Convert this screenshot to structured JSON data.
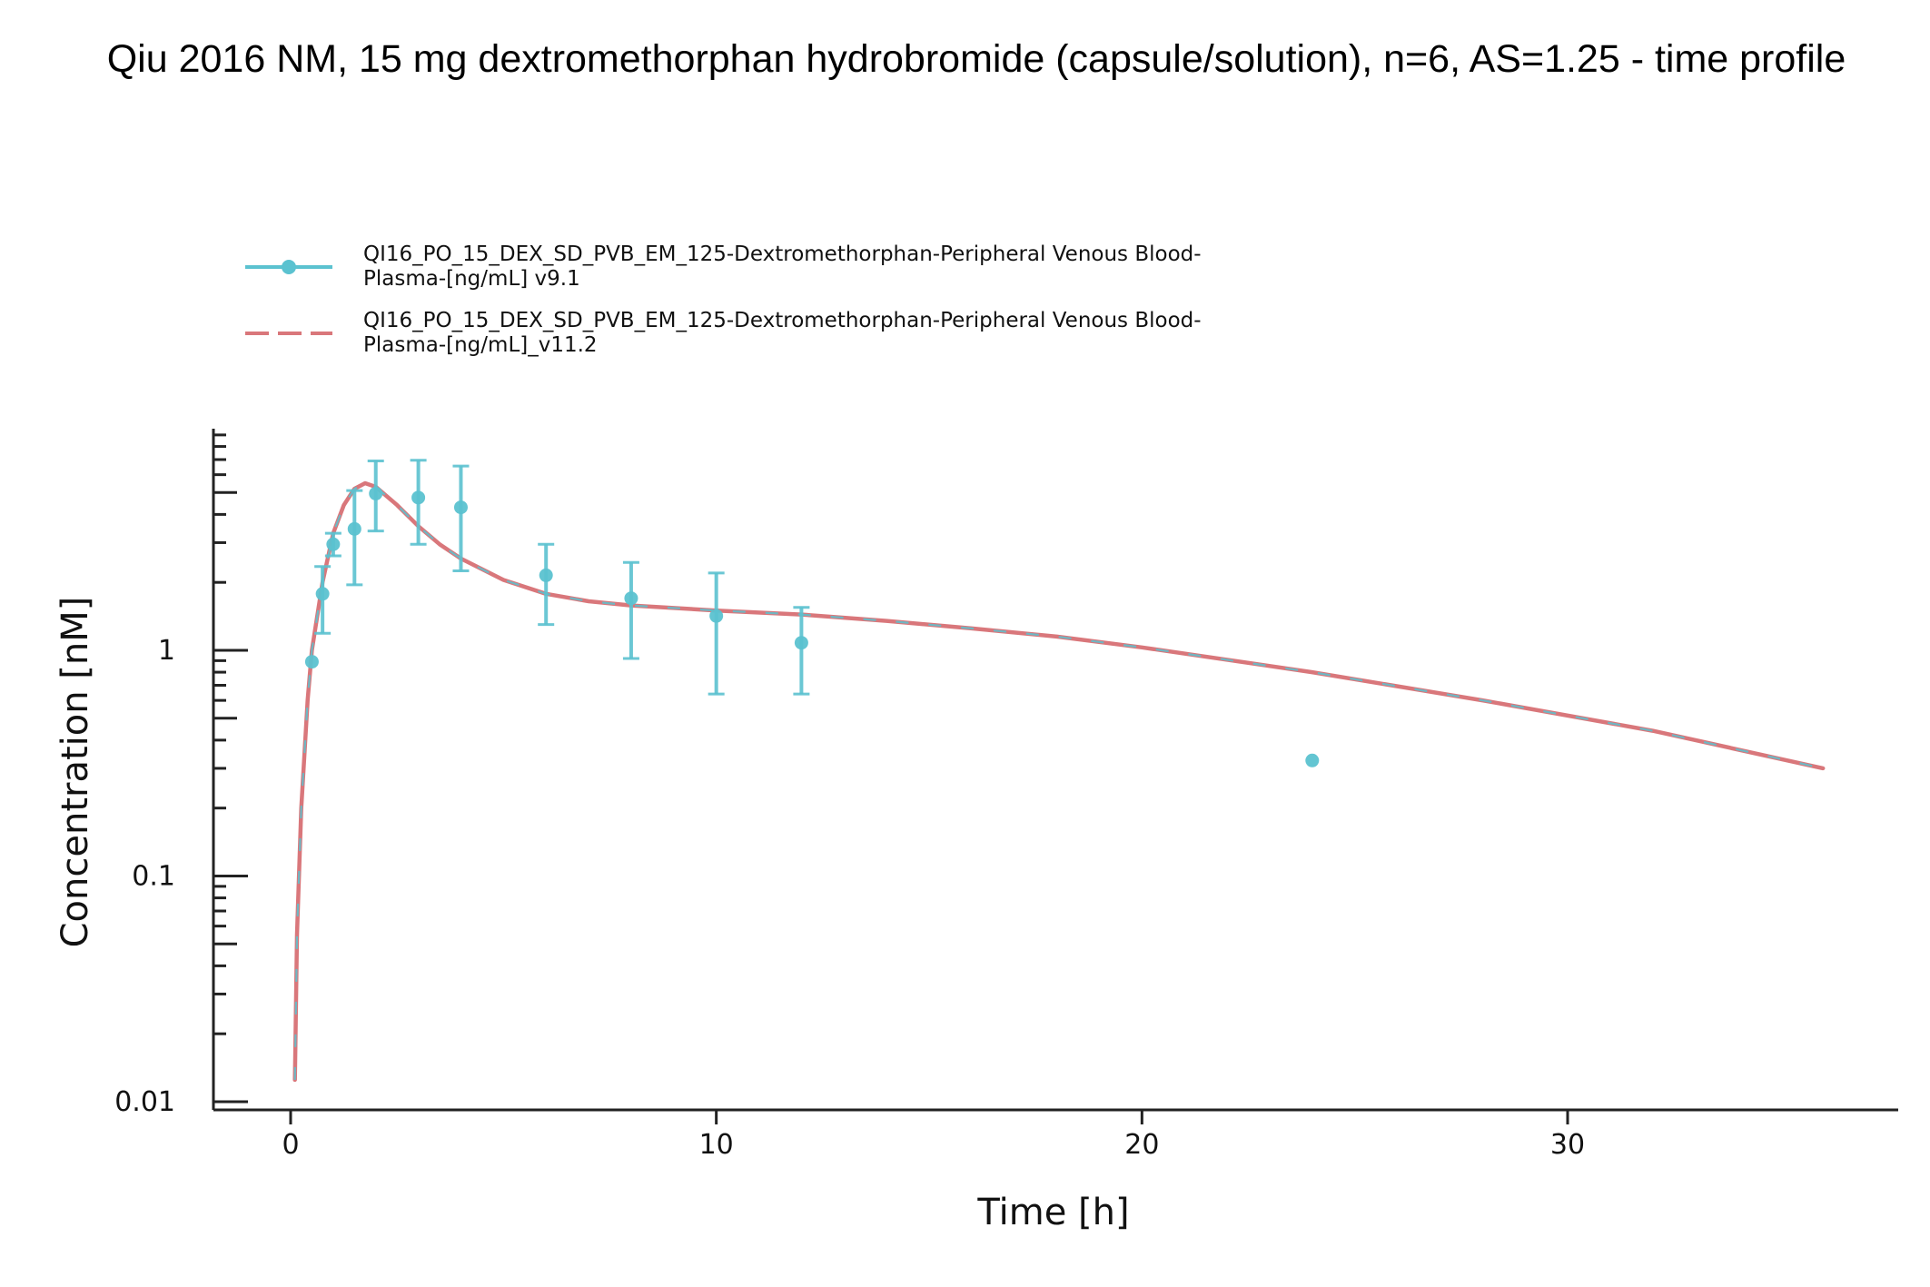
{
  "chart_data": {
    "type": "line",
    "title": "Qiu 2016 NM, 15 mg dextromethorphan hydrobromide (capsule/solution), n=6,  AS=1.25 - time profile",
    "xlabel": "Time [h]",
    "ylabel": "Concentration [nM]",
    "xlim": [
      -1.8,
      37.8
    ],
    "ylim": [
      0.01,
      9
    ],
    "yscale": "log",
    "xticks": [
      0,
      10,
      20,
      30
    ],
    "xtick_labels": [
      "0",
      "10",
      "20",
      "30"
    ],
    "yticks": [
      0.01,
      0.1,
      1
    ],
    "ytick_labels": [
      "0.01",
      "0.1",
      "1"
    ],
    "grid": false,
    "legend_position": "top-left",
    "series": [
      {
        "name": "QI16_PO_15_DEX_SD_PVB_EM_125-Dextromethorphan-Peripheral Venous Blood-Plasma-[ng/mL] v9.1",
        "name_lines": [
          "QI16_PO_15_DEX_SD_PVB_EM_125-Dextromethorphan-Peripheral Venous Blood-",
          "Plasma-[ng/mL] v9.1"
        ],
        "kind": "observed",
        "color": "#5bc2d0",
        "x": [
          0.5,
          0.75,
          1,
          1.5,
          2,
          3,
          4,
          6,
          8,
          10,
          12,
          24
        ],
        "y": [
          0.89,
          1.78,
          2.95,
          3.45,
          4.95,
          4.75,
          4.3,
          2.15,
          1.7,
          1.42,
          1.08,
          0.325
        ],
        "y_lower": [
          null,
          1.19,
          2.62,
          1.95,
          3.38,
          2.95,
          2.25,
          1.3,
          0.92,
          0.64,
          0.64,
          null
        ],
        "y_upper": [
          null,
          2.35,
          3.3,
          5.1,
          6.9,
          6.95,
          6.55,
          2.95,
          2.45,
          2.2,
          1.55,
          null
        ]
      },
      {
        "name": "QI16_PO_15_DEX_SD_PVB_EM_125-Dextromethorphan-Peripheral Venous Blood-Plasma-[ng/mL]_v11.2",
        "name_lines": [
          "QI16_PO_15_DEX_SD_PVB_EM_125-Dextromethorphan-Peripheral Venous Blood-",
          "Plasma-[ng/mL]_v11.2"
        ],
        "kind": "simulated",
        "color": "#d9777b",
        "x": [
          0.1,
          0.15,
          0.25,
          0.4,
          0.5,
          0.75,
          1,
          1.25,
          1.5,
          1.75,
          2,
          2.5,
          3,
          3.5,
          4,
          5,
          6,
          7,
          8,
          10,
          12,
          14,
          16,
          18,
          20,
          24,
          28,
          32,
          36
        ],
        "y": [
          0.0125,
          0.055,
          0.2,
          0.6,
          1.0,
          2.0,
          3.3,
          4.4,
          5.2,
          5.5,
          5.3,
          4.4,
          3.55,
          2.95,
          2.55,
          2.05,
          1.78,
          1.65,
          1.58,
          1.5,
          1.44,
          1.35,
          1.25,
          1.15,
          1.03,
          0.8,
          0.6,
          0.44,
          0.3
        ]
      }
    ]
  }
}
